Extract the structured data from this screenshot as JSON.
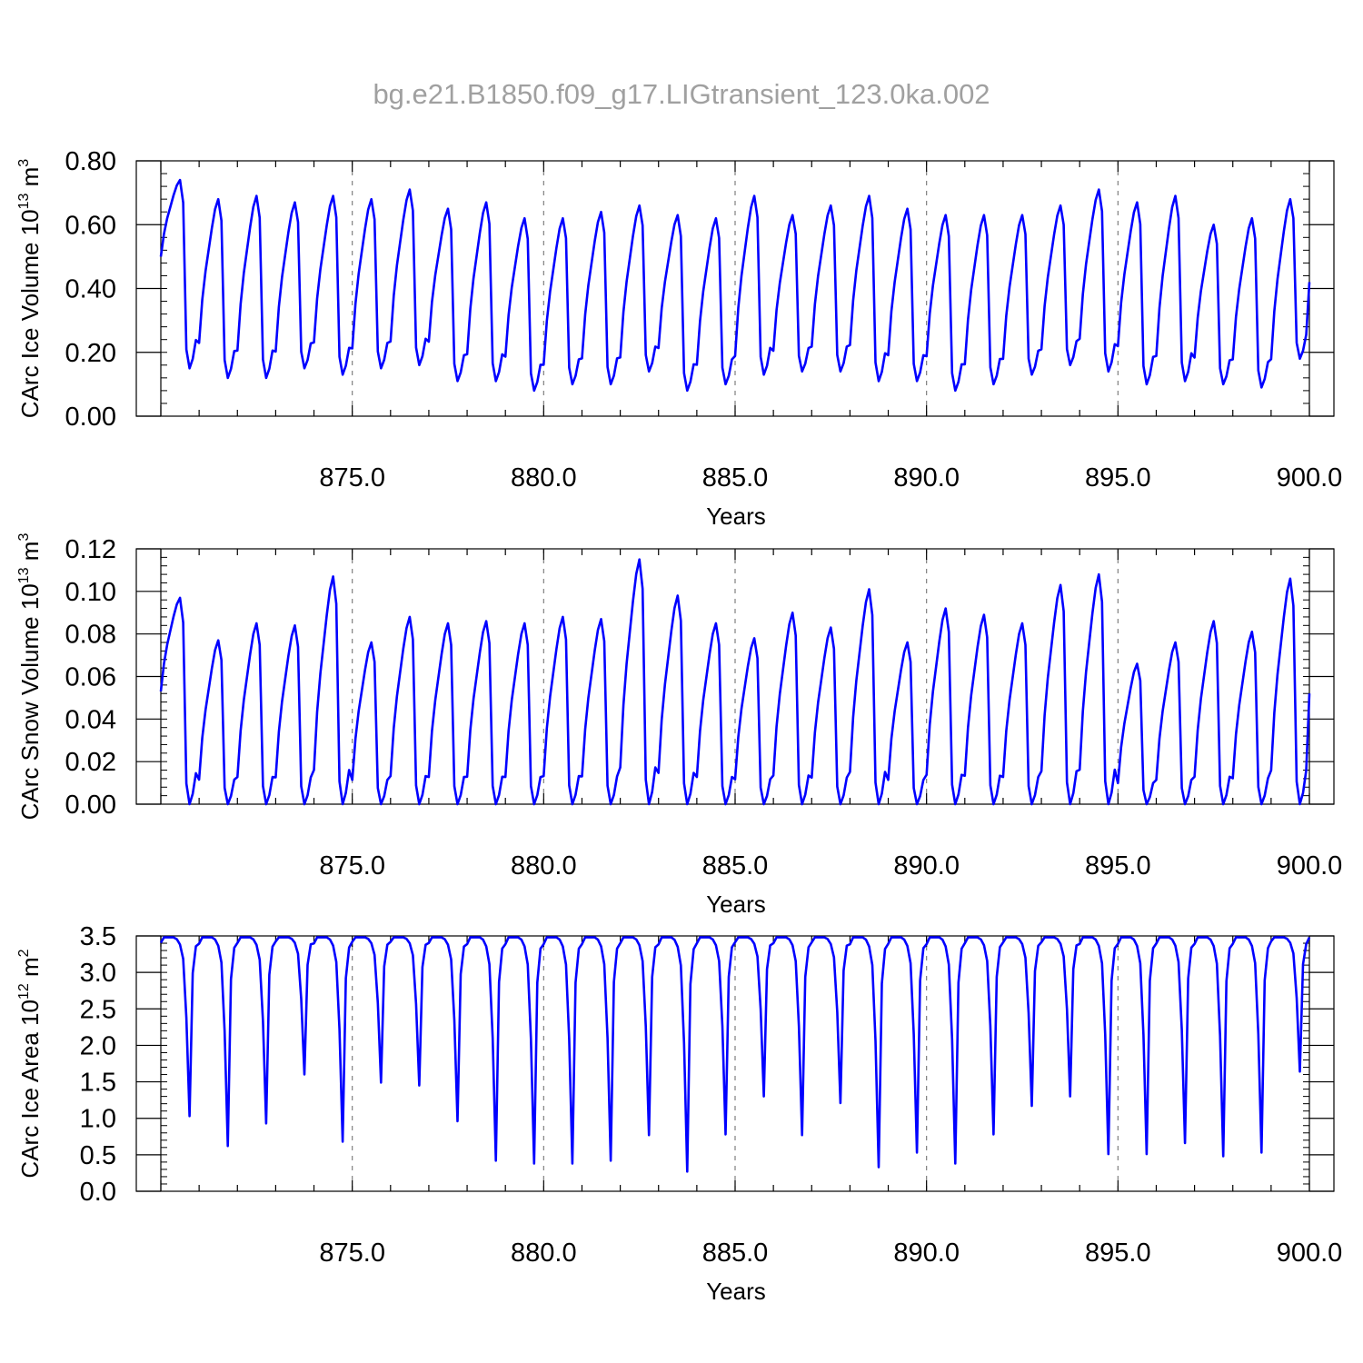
{
  "title": "bg.e21.B1850.f09_g17.LIGtransient_123.0ka.002",
  "colors": {
    "series": "#0000ff",
    "title": "#a0a0a0",
    "axis": "#000000",
    "vline": "#808080"
  },
  "chart_data": [
    {
      "type": "line",
      "ylabel": {
        "base": "CArc Ice Volume 10",
        "exp": "13",
        "unit": " m",
        "unit_exp": "3"
      },
      "xlabel": "Years",
      "xlim": [
        870.0,
        900.0
      ],
      "ylim": [
        0.0,
        0.8
      ],
      "x_ticks": [
        "875.0",
        "880.0",
        "885.0",
        "890.0",
        "895.0",
        "900.0"
      ],
      "y_ticks": [
        "0.00",
        "0.20",
        "0.40",
        "0.60",
        "0.80"
      ],
      "y_tick_values": [
        0.0,
        0.2,
        0.4,
        0.6,
        0.8
      ],
      "y_minor_step": 0.04,
      "vlines": [
        875,
        880,
        885,
        890,
        895
      ],
      "series": [
        {
          "peaks": [
            0.74,
            0.68,
            0.69,
            0.67,
            0.69,
            0.68,
            0.71,
            0.65,
            0.67,
            0.62,
            0.62,
            0.64,
            0.66,
            0.63,
            0.62,
            0.69,
            0.63,
            0.66,
            0.69,
            0.65,
            0.63,
            0.63,
            0.63,
            0.66,
            0.71,
            0.67,
            0.69,
            0.6,
            0.62,
            0.68
          ],
          "troughs": [
            0.15,
            0.12,
            0.12,
            0.15,
            0.13,
            0.15,
            0.16,
            0.11,
            0.11,
            0.08,
            0.1,
            0.1,
            0.14,
            0.08,
            0.1,
            0.13,
            0.14,
            0.14,
            0.11,
            0.11,
            0.08,
            0.1,
            0.13,
            0.16,
            0.14,
            0.1,
            0.11,
            0.1,
            0.09,
            0.18
          ],
          "start_value": 0.5,
          "end_value": 0.42
        }
      ]
    },
    {
      "type": "line",
      "ylabel": {
        "base": "CArc Snow Volume 10",
        "exp": "13",
        "unit": " m",
        "unit_exp": "3"
      },
      "xlabel": "Years",
      "xlim": [
        870.0,
        900.0
      ],
      "ylim": [
        0.0,
        0.12
      ],
      "x_ticks": [
        "875.0",
        "880.0",
        "885.0",
        "890.0",
        "895.0",
        "900.0"
      ],
      "y_ticks": [
        "0.00",
        "0.02",
        "0.04",
        "0.06",
        "0.08",
        "0.10",
        "0.12"
      ],
      "y_tick_values": [
        0.0,
        0.02,
        0.04,
        0.06,
        0.08,
        0.1,
        0.12
      ],
      "y_minor_step": 0.004,
      "vlines": [
        875,
        880,
        885,
        890,
        895
      ],
      "series": [
        {
          "peaks": [
            0.097,
            0.077,
            0.085,
            0.084,
            0.107,
            0.076,
            0.088,
            0.085,
            0.086,
            0.085,
            0.088,
            0.087,
            0.115,
            0.098,
            0.085,
            0.078,
            0.09,
            0.083,
            0.101,
            0.076,
            0.092,
            0.089,
            0.085,
            0.103,
            0.108,
            0.066,
            0.076,
            0.086,
            0.081,
            0.106
          ],
          "troughs": [
            0.0,
            0.0,
            0.0,
            0.0,
            0.0,
            0.0,
            0.0,
            0.0,
            0.0,
            0.0,
            0.0,
            0.0,
            0.0,
            0.0,
            0.0,
            0.0,
            0.0,
            0.0,
            0.0,
            0.0,
            0.0,
            0.0,
            0.0,
            0.0,
            0.0,
            0.0,
            0.0,
            0.0,
            0.0,
            0.0
          ],
          "start_value": 0.053,
          "end_value": 0.052
        }
      ]
    },
    {
      "type": "line",
      "ylabel": {
        "base": "CArc Ice Area 10",
        "exp": "12",
        "unit": " m",
        "unit_exp": "2"
      },
      "xlabel": "Years",
      "xlim": [
        870.0,
        900.0
      ],
      "ylim": [
        0.0,
        3.5
      ],
      "x_ticks": [
        "875.0",
        "880.0",
        "885.0",
        "890.0",
        "895.0",
        "900.0"
      ],
      "y_ticks": [
        "0.0",
        "0.5",
        "1.0",
        "1.5",
        "2.0",
        "2.5",
        "3.0",
        "3.5"
      ],
      "y_tick_values": [
        0.0,
        0.5,
        1.0,
        1.5,
        2.0,
        2.5,
        3.0,
        3.5
      ],
      "y_minor_step": 0.1,
      "vlines": [
        875,
        880,
        885,
        890,
        895
      ],
      "series": [
        {
          "peaks": [
            3.48,
            3.48,
            3.48,
            3.48,
            3.48,
            3.48,
            3.48,
            3.48,
            3.48,
            3.48,
            3.48,
            3.48,
            3.48,
            3.48,
            3.48,
            3.48,
            3.48,
            3.48,
            3.48,
            3.48,
            3.48,
            3.48,
            3.48,
            3.48,
            3.48,
            3.48,
            3.48,
            3.48,
            3.48,
            3.48
          ],
          "troughs": [
            1.03,
            0.62,
            0.93,
            1.6,
            0.68,
            1.49,
            1.45,
            0.96,
            0.42,
            0.38,
            0.38,
            0.42,
            0.77,
            0.27,
            0.78,
            1.3,
            0.77,
            1.21,
            0.33,
            0.53,
            0.38,
            0.78,
            1.17,
            1.3,
            0.51,
            0.51,
            0.66,
            0.48,
            0.53,
            1.64
          ],
          "start_value": 3.48,
          "end_value": 3.48
        }
      ]
    }
  ]
}
